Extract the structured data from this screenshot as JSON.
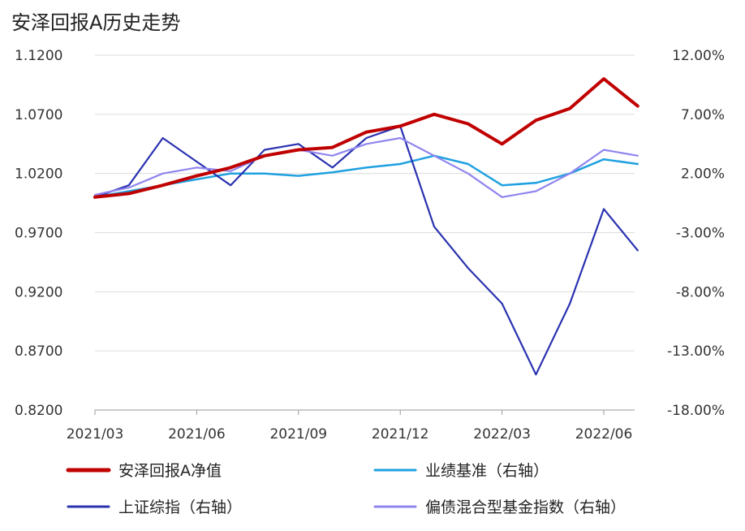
{
  "chart_data": {
    "type": "line",
    "title": "安泽回报A历史走势",
    "x_ticks": [
      "2021/03",
      "2021/06",
      "2021/09",
      "2021/12",
      "2022/03",
      "2022/06"
    ],
    "left_axis": {
      "ticks": [
        "1.1200",
        "1.0700",
        "1.0200",
        "0.9700",
        "0.9200",
        "0.8700",
        "0.8200"
      ],
      "ylim": [
        0.82,
        1.12
      ]
    },
    "right_axis": {
      "ticks": [
        "12.00%",
        "7.00%",
        "2.00%",
        "-3.00%",
        "-8.00%",
        "-13.00%",
        "-18.00%"
      ],
      "ylim": [
        -18,
        12
      ]
    },
    "grid": "horizontal",
    "legend_position": "bottom",
    "series": [
      {
        "name": "安泽回报A净值",
        "axis": "left",
        "color": "#c00000",
        "x": [
          "2021/03",
          "2021/04",
          "2021/05",
          "2021/06",
          "2021/07",
          "2021/08",
          "2021/09",
          "2021/10",
          "2021/11",
          "2021/12",
          "2022/01",
          "2022/02",
          "2022/03",
          "2022/04",
          "2022/05",
          "2022/06",
          "2022/07"
        ],
        "y": [
          1.0,
          1.003,
          1.01,
          1.018,
          1.025,
          1.035,
          1.04,
          1.042,
          1.055,
          1.06,
          1.07,
          1.062,
          1.045,
          1.065,
          1.075,
          1.1,
          1.077
        ]
      },
      {
        "name": "业绩基准（右轴）",
        "axis": "right",
        "color": "#1fa0e0",
        "x": [
          "2021/03",
          "2021/04",
          "2021/05",
          "2021/06",
          "2021/07",
          "2021/08",
          "2021/09",
          "2021/10",
          "2021/11",
          "2021/12",
          "2022/01",
          "2022/02",
          "2022/03",
          "2022/04",
          "2022/05",
          "2022/06",
          "2022/07"
        ],
        "y": [
          0.0,
          0.5,
          1.0,
          1.5,
          2.0,
          2.0,
          1.8,
          2.1,
          2.5,
          2.8,
          3.5,
          2.8,
          1.0,
          1.2,
          2.0,
          3.2,
          2.8
        ]
      },
      {
        "name": "上证综指（右轴）",
        "axis": "right",
        "color": "#2a32b0",
        "x": [
          "2021/03",
          "2021/04",
          "2021/05",
          "2021/06",
          "2021/07",
          "2021/08",
          "2021/09",
          "2021/10",
          "2021/11",
          "2021/12",
          "2022/01",
          "2022/02",
          "2022/03",
          "2022/04",
          "2022/05",
          "2022/06",
          "2022/07"
        ],
        "y": [
          0.0,
          1.0,
          5.0,
          3.0,
          1.0,
          4.0,
          4.5,
          2.5,
          5.0,
          6.0,
          -2.5,
          -6.0,
          -9.0,
          -15.0,
          -9.0,
          -1.0,
          -4.5
        ]
      },
      {
        "name": "偏债混合型基金指数（右轴）",
        "axis": "right",
        "color": "#8f85ee",
        "x": [
          "2021/03",
          "2021/04",
          "2021/05",
          "2021/06",
          "2021/07",
          "2021/08",
          "2021/09",
          "2021/10",
          "2021/11",
          "2021/12",
          "2022/01",
          "2022/02",
          "2022/03",
          "2022/04",
          "2022/05",
          "2022/06",
          "2022/07"
        ],
        "y": [
          0.2,
          0.8,
          2.0,
          2.5,
          2.2,
          3.5,
          4.0,
          3.5,
          4.5,
          5.0,
          3.5,
          2.0,
          0.0,
          0.5,
          2.0,
          4.0,
          3.5
        ]
      }
    ]
  }
}
